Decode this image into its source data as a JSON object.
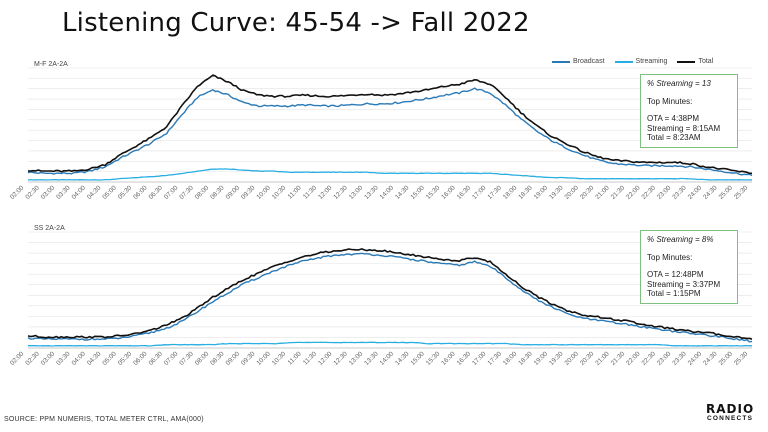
{
  "title": "Listening Curve: 45-54 -> Fall 2022",
  "source": "SOURCE: PPM NUMERIS, TOTAL METER CTRL, AMA(000)",
  "logo": {
    "line1": "RADIO",
    "line2": "CONNECTS"
  },
  "legend": [
    {
      "label": "Broadcast",
      "color": "#2a7ab8"
    },
    {
      "label": "Streaming",
      "color": "#29aee3"
    },
    {
      "label": "Total",
      "color": "#111111"
    }
  ],
  "colors": {
    "broadcast": "#2a7ab8",
    "streaming": "#29aee3",
    "total": "#111111",
    "grid": "#e3e3e3",
    "callout_border": "#7fbf7f"
  },
  "chart_data": [
    {
      "type": "line",
      "panel_label": "M-F 2A-2A",
      "x_ticks": [
        "02:00",
        "02:30",
        "03:00",
        "03:30",
        "04:00",
        "04:30",
        "05:00",
        "05:30",
        "06:00",
        "06:30",
        "07:00",
        "07:30",
        "08:00",
        "08:30",
        "09:00",
        "09:30",
        "10:00",
        "10:30",
        "11:00",
        "11:30",
        "12:00",
        "12:30",
        "13:00",
        "13:30",
        "14:00",
        "14:30",
        "15:00",
        "15:30",
        "16:00",
        "16:30",
        "17:00",
        "17:30",
        "18:00",
        "18:30",
        "19:00",
        "19:30",
        "20:00",
        "20:30",
        "21:00",
        "21:30",
        "22:00",
        "22:30",
        "23:00",
        "23:30",
        "24:00",
        "24:30",
        "25:00",
        "25:30"
      ],
      "series": [
        {
          "name": "Broadcast",
          "values": [
            9,
            8,
            8,
            8,
            10,
            14,
            22,
            29,
            36,
            45,
            62,
            78,
            85,
            80,
            73,
            70,
            70,
            70,
            71,
            70,
            70,
            71,
            72,
            72,
            73,
            75,
            77,
            80,
            82,
            86,
            82,
            71,
            58,
            47,
            38,
            31,
            25,
            20,
            17,
            16,
            15,
            15,
            15,
            14,
            12,
            10,
            8,
            6
          ]
        },
        {
          "name": "Streaming",
          "values": [
            2,
            2,
            2,
            2,
            2,
            2,
            3,
            4,
            5,
            6,
            8,
            10,
            12,
            12,
            11,
            10,
            10,
            9,
            9,
            9,
            9,
            9,
            9,
            8,
            8,
            8,
            8,
            8,
            8,
            8,
            8,
            7,
            6,
            5,
            4,
            4,
            3,
            3,
            3,
            3,
            3,
            3,
            3,
            3,
            2,
            2,
            2,
            2
          ]
        },
        {
          "name": "Total",
          "values": [
            11,
            10,
            10,
            10,
            12,
            16,
            25,
            33,
            41,
            51,
            70,
            88,
            98,
            92,
            84,
            80,
            79,
            79,
            80,
            79,
            79,
            80,
            81,
            80,
            81,
            83,
            85,
            88,
            90,
            94,
            90,
            78,
            64,
            52,
            42,
            35,
            28,
            23,
            20,
            19,
            18,
            18,
            18,
            17,
            14,
            12,
            10,
            8
          ]
        }
      ],
      "ylim": [
        0,
        105
      ],
      "callout": {
        "pct": "% Streaming = 13",
        "header": "Top Minutes:",
        "lines": [
          "OTA = 4:38PM",
          "Streaming = 8:15AM",
          "Total = 8:23AM"
        ]
      }
    },
    {
      "type": "line",
      "panel_label": "SS 2A-2A",
      "x_ticks": [
        "02:00",
        "02:30",
        "03:00",
        "03:30",
        "04:00",
        "04:30",
        "05:00",
        "05:30",
        "06:00",
        "06:30",
        "07:00",
        "07:30",
        "08:00",
        "08:30",
        "09:00",
        "09:30",
        "10:00",
        "10:30",
        "11:00",
        "11:30",
        "12:00",
        "12:30",
        "13:00",
        "13:30",
        "14:00",
        "14:30",
        "15:00",
        "15:30",
        "16:00",
        "16:30",
        "17:00",
        "17:30",
        "18:00",
        "18:30",
        "19:00",
        "19:30",
        "20:00",
        "20:30",
        "21:00",
        "21:30",
        "22:00",
        "22:30",
        "23:00",
        "23:30",
        "24:00",
        "24:30",
        "25:00",
        "25:30"
      ],
      "series": [
        {
          "name": "Broadcast",
          "values": [
            9,
            8,
            8,
            8,
            8,
            8,
            9,
            11,
            14,
            18,
            24,
            33,
            42,
            50,
            58,
            64,
            70,
            75,
            79,
            82,
            84,
            85,
            85,
            84,
            82,
            80,
            78,
            76,
            75,
            78,
            74,
            64,
            53,
            44,
            37,
            31,
            27,
            25,
            23,
            21,
            19,
            17,
            15,
            13,
            12,
            10,
            8,
            6
          ]
        },
        {
          "name": "Streaming",
          "values": [
            2,
            2,
            2,
            2,
            2,
            2,
            2,
            2,
            2,
            3,
            3,
            3,
            3,
            4,
            4,
            4,
            4,
            5,
            5,
            5,
            5,
            5,
            5,
            5,
            5,
            5,
            4,
            4,
            4,
            4,
            4,
            4,
            3,
            3,
            3,
            3,
            3,
            3,
            3,
            3,
            3,
            3,
            2,
            2,
            2,
            2,
            2,
            2
          ]
        },
        {
          "name": "Total",
          "values": [
            11,
            10,
            10,
            10,
            10,
            10,
            11,
            13,
            16,
            21,
            27,
            36,
            46,
            54,
            62,
            68,
            74,
            79,
            83,
            86,
            88,
            89,
            89,
            88,
            86,
            84,
            82,
            80,
            79,
            82,
            78,
            67,
            56,
            47,
            40,
            34,
            30,
            28,
            26,
            24,
            21,
            19,
            17,
            15,
            14,
            12,
            10,
            8
          ]
        }
      ],
      "ylim": [
        0,
        105
      ],
      "callout": {
        "pct": "% Streaming = 8%",
        "header": "Top Minutes:",
        "lines": [
          "OTA = 12:48PM",
          "Streaming = 3:37PM",
          "Total = 1:15PM"
        ]
      }
    }
  ]
}
